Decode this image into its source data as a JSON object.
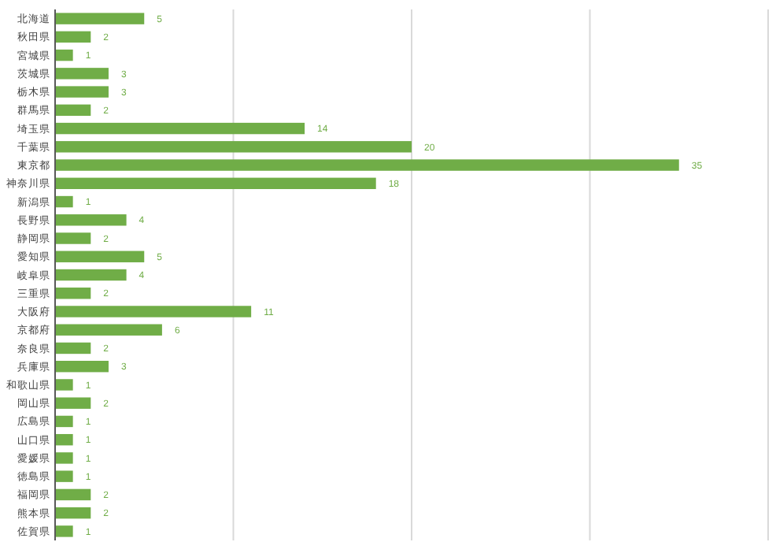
{
  "chart_data": {
    "type": "bar",
    "orientation": "horizontal",
    "categories": [
      "北海道",
      "秋田県",
      "宮城県",
      "茨城県",
      "栃木県",
      "群馬県",
      "埼玉県",
      "千葉県",
      "東京都",
      "神奈川県",
      "新潟県",
      "長野県",
      "静岡県",
      "愛知県",
      "岐阜県",
      "三重県",
      "大阪府",
      "京都府",
      "奈良県",
      "兵庫県",
      "和歌山県",
      "岡山県",
      "広島県",
      "山口県",
      "愛媛県",
      "徳島県",
      "福岡県",
      "熊本県",
      "佐賀県"
    ],
    "values": [
      5,
      2,
      1,
      3,
      3,
      2,
      14,
      20,
      35,
      18,
      1,
      4,
      2,
      5,
      4,
      2,
      11,
      6,
      2,
      3,
      1,
      2,
      1,
      1,
      1,
      1,
      2,
      2,
      1
    ],
    "color": "#70ad47",
    "xlim": [
      0,
      40
    ],
    "xticks": [
      {
        "value": 0,
        "label": null
      },
      {
        "value": 10,
        "label": null
      },
      {
        "value": 20,
        "label": null
      },
      {
        "value": 30,
        "label": null
      },
      {
        "value": 40,
        "label": null
      }
    ],
    "tick_labels": "y",
    "grid": "x",
    "data_labels": true
  }
}
